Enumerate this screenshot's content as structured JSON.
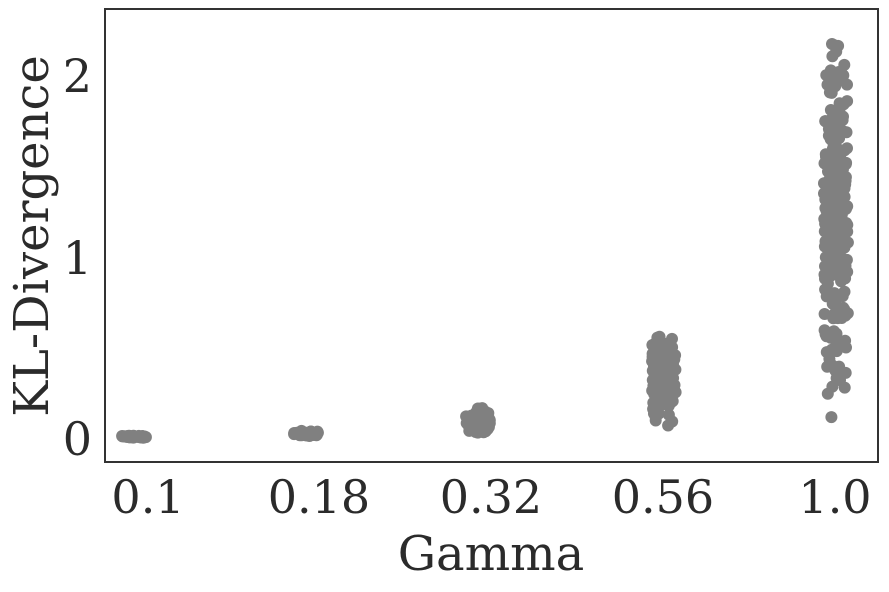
{
  "chart_data": {
    "type": "scatter",
    "xlabel": "Gamma",
    "ylabel": "KL-Divergence",
    "categories": [
      "0.1",
      "0.18",
      "0.32",
      "0.56",
      "1.0"
    ],
    "yticks": [
      "0",
      "1",
      "2"
    ],
    "ylim": [
      -0.12,
      2.35
    ],
    "grid": false,
    "point_color": "#808080",
    "groups": [
      {
        "category": "0.1",
        "y_min": 0.01,
        "y_max": 0.025
      },
      {
        "category": "0.18",
        "y_min": 0.02,
        "y_max": 0.05
      },
      {
        "category": "0.32",
        "y_min": 0.02,
        "y_max": 0.18
      },
      {
        "category": "0.56",
        "y_min": 0.05,
        "y_max": 0.59
      },
      {
        "category": "1.0",
        "y_min": 0.02,
        "y_max": 2.23
      }
    ]
  }
}
